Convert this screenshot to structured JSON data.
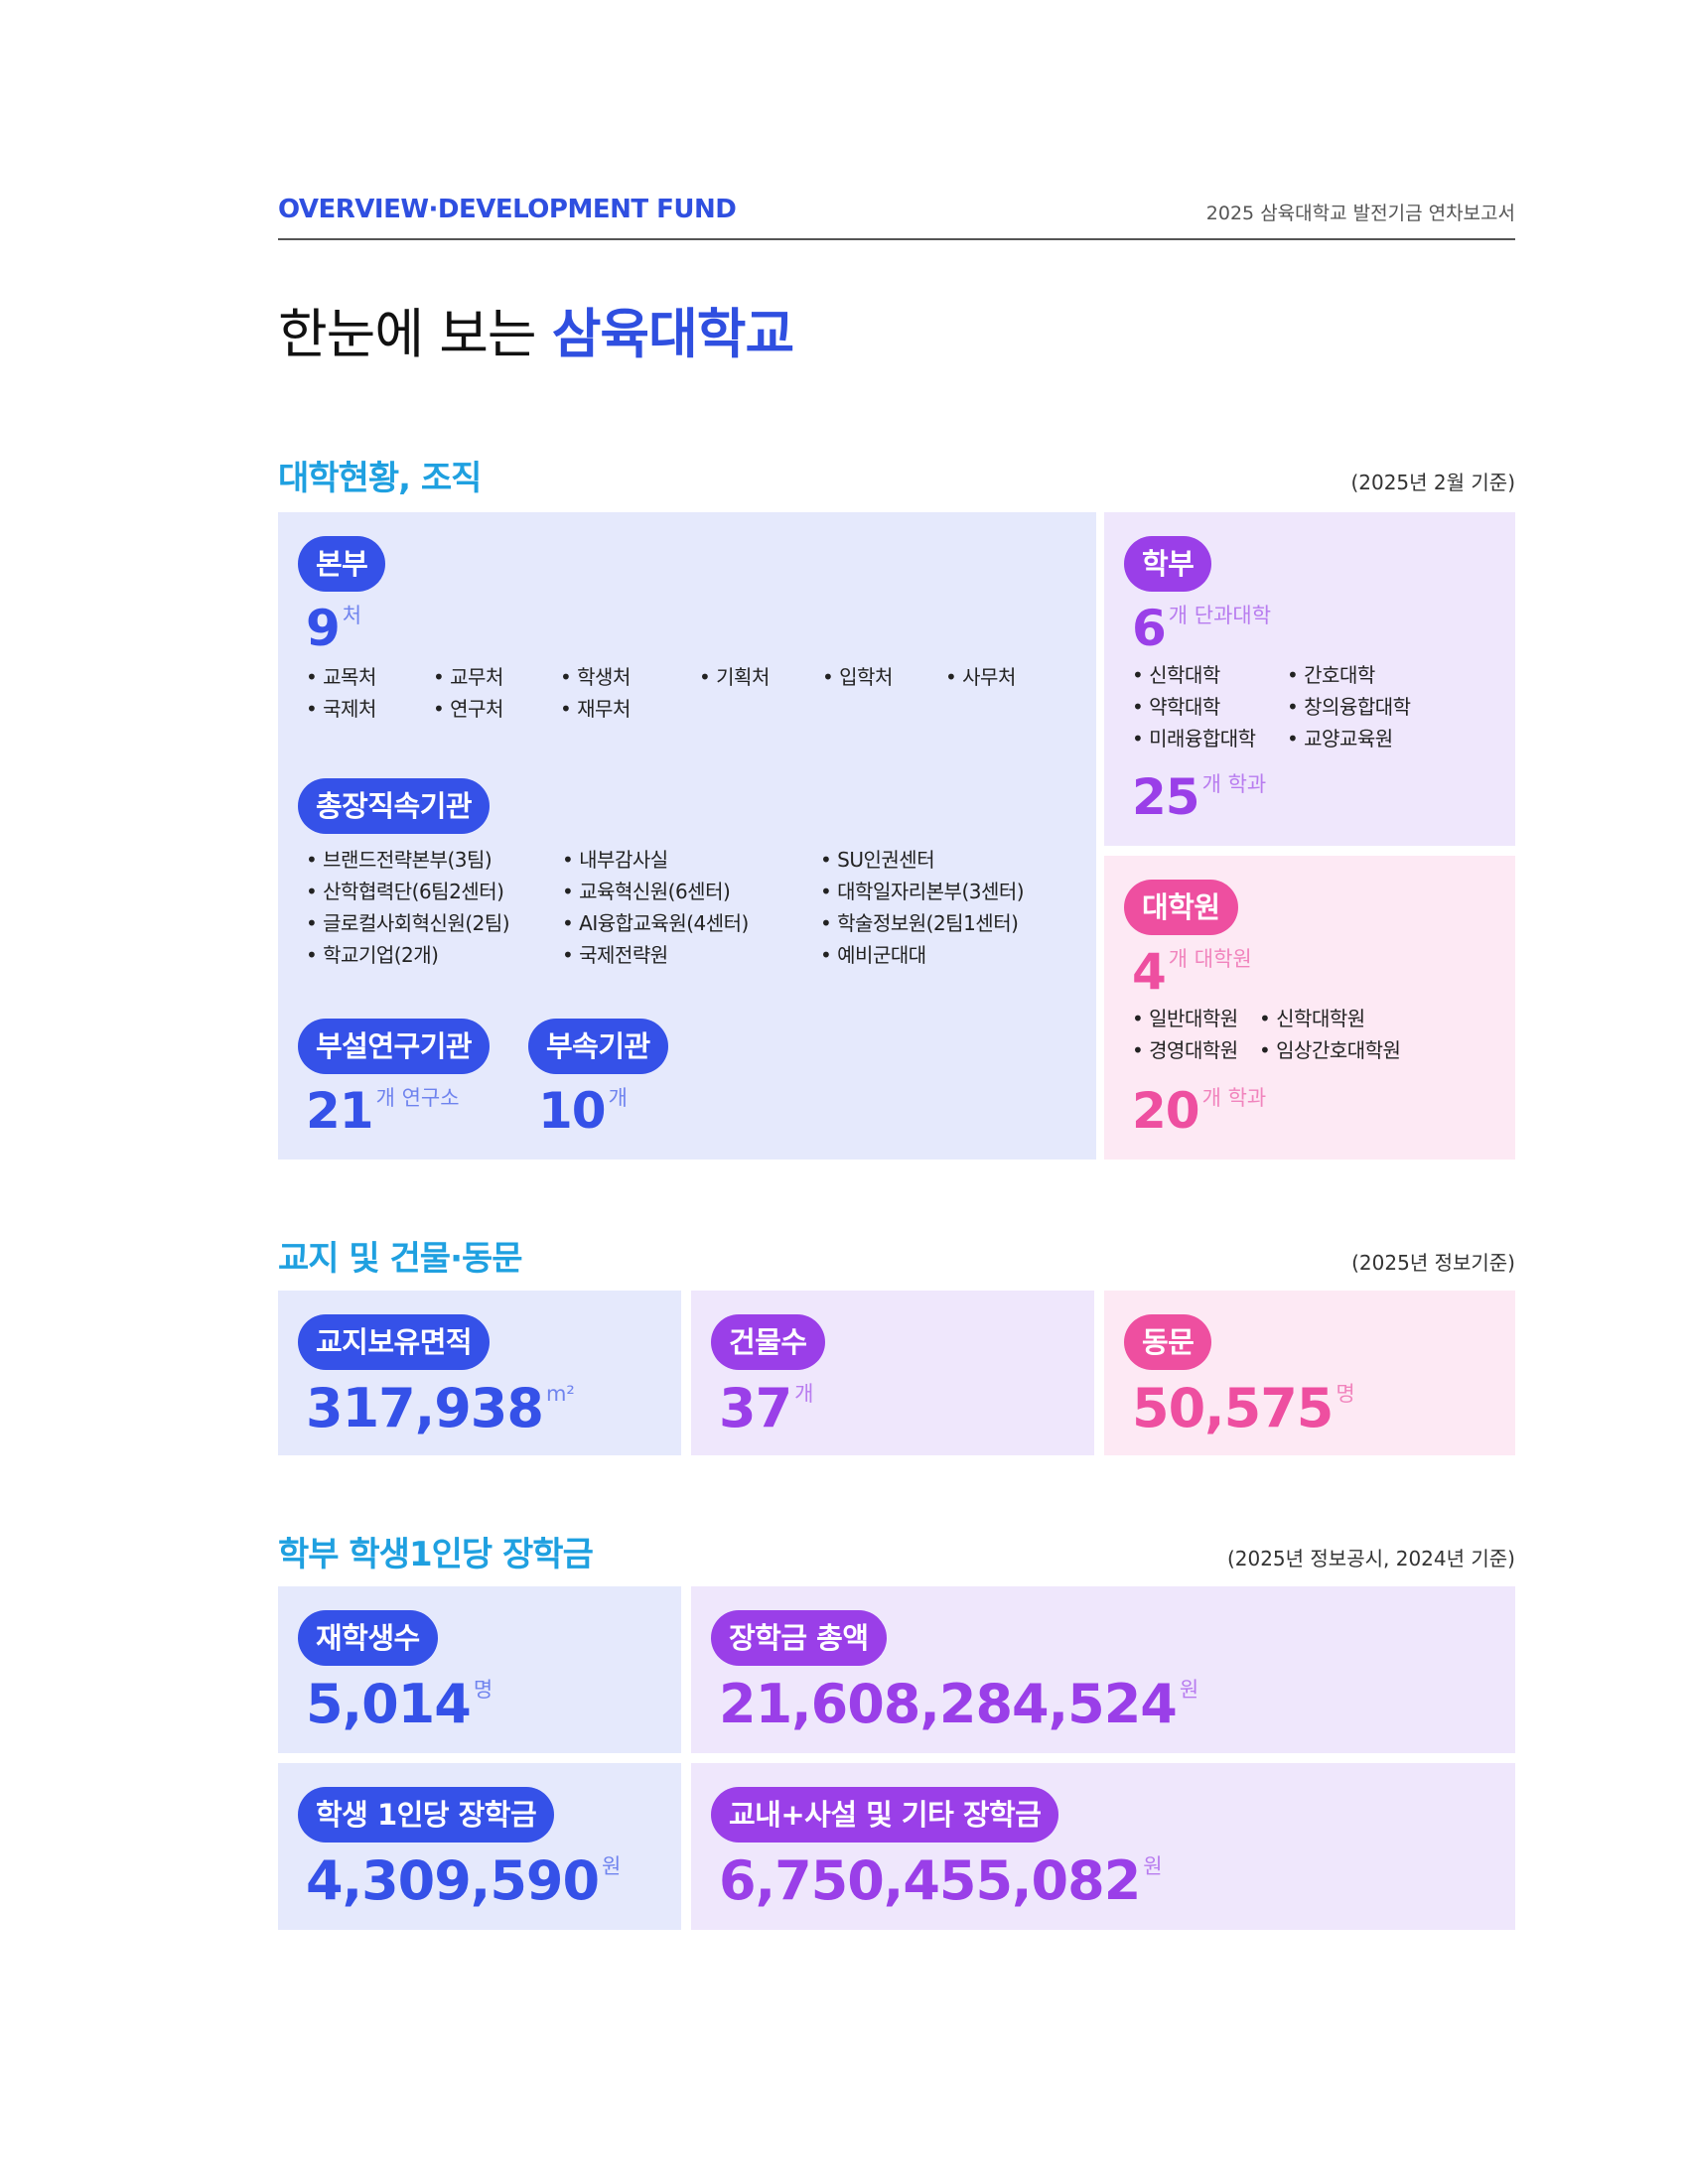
{
  "header": {
    "left": "OVERVIEW·DEVELOPMENT FUND",
    "right": "2025 삼육대학교 발전기금 연차보고서"
  },
  "title": {
    "prefix": "한눈에 보는 ",
    "highlight": "삼육대학교"
  },
  "org": {
    "heading": "대학현황, 조직",
    "note": "(2025년 2월 기준)",
    "bonbu": {
      "label": "본부",
      "value": "9",
      "unit": "처",
      "items": [
        "• 교목처",
        "• 교무처",
        "• 학생처",
        "• 기획처",
        "• 입학처",
        "• 사무처",
        "• 국제처",
        "• 연구처",
        "• 재무처"
      ]
    },
    "president": {
      "label": "총장직속기관",
      "items": [
        "• 브랜드전략본부(3팀)",
        "• 산학협력단(6팀2센터)",
        "• 글로컬사회혁신원(2팀)",
        "• 학교기업(2개)",
        "• 내부감사실",
        "• 교육혁신원(6센터)",
        "• AI융합교육원(4센터)",
        "• 국제전략원",
        "• SU인권센터",
        "• 대학일자리본부(3센터)",
        "• 학술정보원(2팀1센터)",
        "• 예비군대대"
      ]
    },
    "research": {
      "label": "부설연구기관",
      "value": "21",
      "unit": "개 연구소"
    },
    "affiliated": {
      "label": "부속기관",
      "value": "10",
      "unit": "개"
    },
    "undergrad": {
      "label": "학부",
      "value": "6",
      "unit": "개 단과대학",
      "items": [
        "• 신학대학",
        "• 약학대학",
        "• 미래융합대학",
        "• 간호대학",
        "• 창의융합대학",
        "• 교양교육원"
      ],
      "dept_value": "25",
      "dept_unit": "개 학과"
    },
    "grad": {
      "label": "대학원",
      "value": "4",
      "unit": "개 대학원",
      "items": [
        "• 일반대학원",
        "• 경영대학원",
        "• 신학대학원",
        "• 임상간호대학원"
      ],
      "dept_value": "20",
      "dept_unit": "개 학과"
    }
  },
  "campus": {
    "heading": "교지 및 건물·동문",
    "note": "(2025년 정보기준)",
    "land": {
      "label": "교지보유면적",
      "value": "317,938",
      "unit": "m²"
    },
    "buildings": {
      "label": "건물수",
      "value": "37",
      "unit": "개"
    },
    "alumni": {
      "label": "동문",
      "value": "50,575",
      "unit": "명"
    }
  },
  "scholarship": {
    "heading": "학부 학생1인당 장학금",
    "note": "(2025년 정보공시, 2024년 기준)",
    "students": {
      "label": "재학생수",
      "value": "5,014",
      "unit": "명"
    },
    "total": {
      "label": "장학금 총액",
      "value": "21,608,284,524",
      "unit": "원"
    },
    "per_student": {
      "label": "학생 1인당 장학금",
      "value": "4,309,590",
      "unit": "원"
    },
    "other": {
      "label": "교내+사설 및 기타 장학금",
      "value": "6,750,455,082",
      "unit": "원"
    }
  }
}
